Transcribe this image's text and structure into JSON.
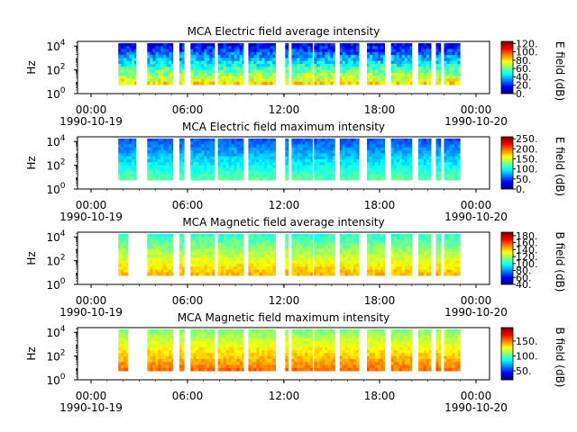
{
  "chart_data": [
    {
      "type": "heatmap",
      "title": "MCA  Electric field average intensity",
      "ylabel": "Hz",
      "y_scale": "log",
      "ylim": [
        1,
        25000
      ],
      "y_ticks": [
        {
          "v": 1,
          "b": "10",
          "e": "0"
        },
        {
          "v": 100,
          "b": "10",
          "e": "2"
        },
        {
          "v": 10000,
          "b": "10",
          "e": "4"
        }
      ],
      "x_ticks": [
        {
          "t": "00:00",
          "d": "1990-10-19"
        },
        {
          "t": "06:00",
          "d": ""
        },
        {
          "t": "12:00",
          "d": ""
        },
        {
          "t": "18:00",
          "d": ""
        },
        {
          "t": "00:00",
          "d": "1990-10-20"
        }
      ],
      "colorbar_label": "E field (dB)",
      "colorbar_range": [
        0,
        125
      ],
      "colorbar_ticks": [
        "0.",
        "20.",
        "40.",
        "60.",
        "80.",
        "100.",
        "120."
      ],
      "colorscale": "jet",
      "channel_range": [
        5.6,
        17800
      ],
      "data_intervals": [
        [
          1.7,
          2.8
        ],
        [
          3.5,
          5.1
        ],
        [
          5.5,
          5.8
        ],
        [
          6.2,
          7.7
        ],
        [
          7.9,
          9.5
        ],
        [
          9.8,
          11.5
        ],
        [
          12.1,
          12.3
        ],
        [
          12.5,
          13.8
        ],
        [
          13.9,
          15.2
        ],
        [
          15.5,
          16.7
        ],
        [
          17.2,
          18.3
        ],
        [
          18.7,
          20.0
        ],
        [
          20.4,
          21.2
        ],
        [
          21.5,
          21.8
        ],
        [
          22.0,
          23.0
        ]
      ],
      "value_range_db": [
        0,
        90
      ]
    },
    {
      "type": "heatmap",
      "title": "MCA  Electric field maximum intensity",
      "ylabel": "Hz",
      "y_scale": "log",
      "ylim": [
        1,
        25000
      ],
      "y_ticks": [
        {
          "v": 1,
          "b": "10",
          "e": "0"
        },
        {
          "v": 100,
          "b": "10",
          "e": "2"
        },
        {
          "v": 10000,
          "b": "10",
          "e": "4"
        }
      ],
      "x_ticks": [
        {
          "t": "00:00",
          "d": "1990-10-19"
        },
        {
          "t": "06:00",
          "d": ""
        },
        {
          "t": "12:00",
          "d": ""
        },
        {
          "t": "18:00",
          "d": ""
        },
        {
          "t": "00:00",
          "d": "1990-10-20"
        }
      ],
      "colorbar_label": "E field (dB)",
      "colorbar_range": [
        0,
        260
      ],
      "colorbar_ticks": [
        "0.",
        "50.",
        "100.",
        "150.",
        "200.",
        "250."
      ],
      "colorscale": "jet",
      "channel_range": [
        5.6,
        17800
      ],
      "data_intervals": [
        [
          1.7,
          2.8
        ],
        [
          3.5,
          5.1
        ],
        [
          5.5,
          5.8
        ],
        [
          6.2,
          7.7
        ],
        [
          7.9,
          9.5
        ],
        [
          9.8,
          11.5
        ],
        [
          12.1,
          12.3
        ],
        [
          12.5,
          13.8
        ],
        [
          13.9,
          15.2
        ],
        [
          15.5,
          16.7
        ],
        [
          17.2,
          18.3
        ],
        [
          18.7,
          20.0
        ],
        [
          20.4,
          21.2
        ],
        [
          21.5,
          21.8
        ],
        [
          22.0,
          23.0
        ]
      ],
      "value_range_db": [
        40,
        130
      ]
    },
    {
      "type": "heatmap",
      "title": "MCA  Magnetic field average intensity",
      "ylabel": "Hz",
      "y_scale": "log",
      "ylim": [
        1,
        25000
      ],
      "y_ticks": [
        {
          "v": 1,
          "b": "10",
          "e": "0"
        },
        {
          "v": 100,
          "b": "10",
          "e": "2"
        },
        {
          "v": 10000,
          "b": "10",
          "e": "4"
        }
      ],
      "x_ticks": [
        {
          "t": "00:00",
          "d": "1990-10-19"
        },
        {
          "t": "06:00",
          "d": ""
        },
        {
          "t": "12:00",
          "d": ""
        },
        {
          "t": "18:00",
          "d": ""
        },
        {
          "t": "00:00",
          "d": "1990-10-20"
        }
      ],
      "colorbar_label": "B field (dB)",
      "colorbar_range": [
        40,
        190
      ],
      "colorbar_ticks": [
        "40.",
        "60.",
        "80.",
        "100.",
        "120.",
        "140.",
        "160.",
        "180."
      ],
      "colorscale": "jet",
      "channel_range": [
        5.6,
        17800
      ],
      "data_intervals": [
        [
          1.7,
          2.3
        ],
        [
          3.5,
          5.1
        ],
        [
          5.5,
          5.8
        ],
        [
          6.2,
          7.7
        ],
        [
          7.9,
          9.5
        ],
        [
          9.8,
          11.5
        ],
        [
          12.1,
          12.3
        ],
        [
          12.5,
          13.8
        ],
        [
          13.9,
          15.2
        ],
        [
          15.5,
          16.7
        ],
        [
          17.2,
          18.3
        ],
        [
          18.7,
          20.0
        ],
        [
          20.4,
          21.2
        ],
        [
          21.5,
          21.8
        ],
        [
          22.0,
          23.0
        ]
      ],
      "value_range_db": [
        95,
        150
      ]
    },
    {
      "type": "heatmap",
      "title": "MCA  Magnetic field maximum intensity",
      "ylabel": "Hz",
      "y_scale": "log",
      "ylim": [
        1,
        25000
      ],
      "y_ticks": [
        {
          "v": 1,
          "b": "10",
          "e": "0"
        },
        {
          "v": 100,
          "b": "10",
          "e": "2"
        },
        {
          "v": 10000,
          "b": "10",
          "e": "4"
        }
      ],
      "x_ticks": [
        {
          "t": "00:00",
          "d": "1990-10-19"
        },
        {
          "t": "06:00",
          "d": ""
        },
        {
          "t": "12:00",
          "d": ""
        },
        {
          "t": "18:00",
          "d": ""
        },
        {
          "t": "00:00",
          "d": "1990-10-20"
        }
      ],
      "colorbar_label": "B field (dB)",
      "colorbar_range": [
        20,
        195
      ],
      "colorbar_ticks": [
        "50.",
        "100.",
        "150."
      ],
      "colorscale": "jet",
      "channel_range": [
        5.6,
        17800
      ],
      "data_intervals": [
        [
          1.7,
          2.3
        ],
        [
          3.5,
          5.1
        ],
        [
          5.5,
          5.8
        ],
        [
          6.2,
          7.7
        ],
        [
          7.9,
          9.5
        ],
        [
          9.8,
          11.5
        ],
        [
          12.1,
          12.3
        ],
        [
          12.5,
          13.8
        ],
        [
          13.9,
          15.2
        ],
        [
          15.5,
          16.7
        ],
        [
          17.2,
          18.3
        ],
        [
          18.7,
          20.0
        ],
        [
          20.4,
          21.2
        ],
        [
          21.5,
          21.8
        ],
        [
          22.0,
          23.0
        ]
      ],
      "value_range_db": [
        100,
        160
      ]
    }
  ]
}
